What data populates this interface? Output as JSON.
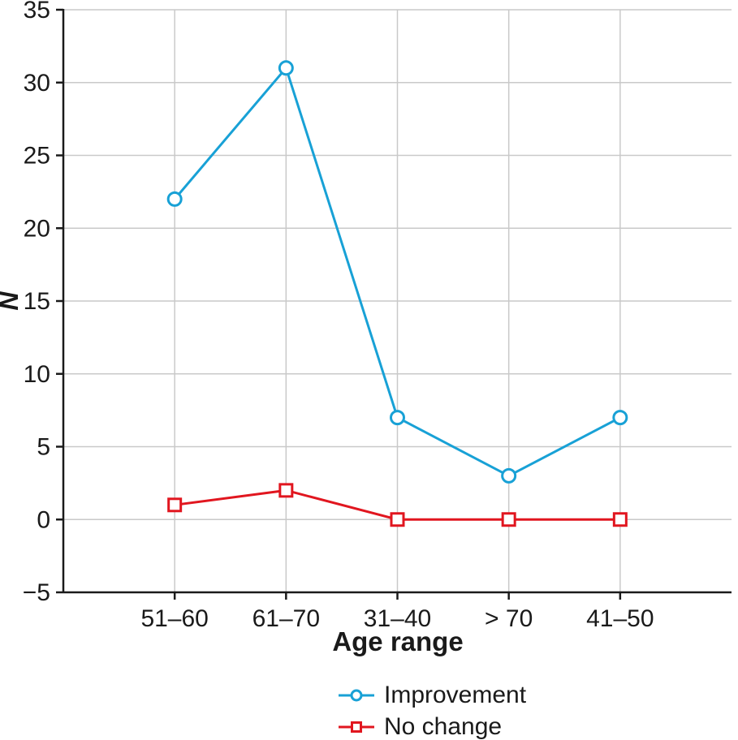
{
  "chart_data": {
    "type": "line",
    "title": "",
    "xlabel": "Age range",
    "ylabel": "N",
    "categories": [
      "51–60",
      "61–70",
      "31–40",
      "> 70",
      "41–50"
    ],
    "series": [
      {
        "name": "Improvement",
        "values": [
          22,
          31,
          7,
          3,
          7
        ],
        "color": "#18a1d6",
        "marker": "circle"
      },
      {
        "name": "No change",
        "values": [
          1,
          2,
          0,
          0,
          0
        ],
        "color": "#e1161f",
        "marker": "square"
      }
    ],
    "ylim": [
      -5,
      35
    ],
    "ytick_step": 5,
    "grid": true,
    "legend_position": "bottom",
    "colors": {
      "axis": "#1a1a1a",
      "grid": "#c9c9c9",
      "background": "#ffffff"
    }
  }
}
